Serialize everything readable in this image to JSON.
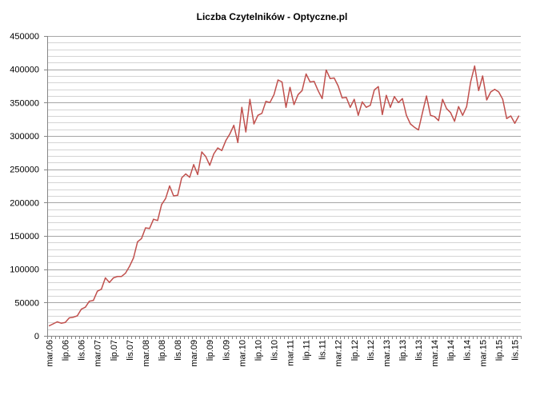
{
  "chart_data": {
    "type": "line",
    "title": "Liczba Czytelników - Optyczne.pl",
    "xlabel": "",
    "ylabel": "",
    "ylim": [
      0,
      450000
    ],
    "y_ticks": [
      "0",
      "50000",
      "100000",
      "150000",
      "200000",
      "250000",
      "300000",
      "350000",
      "400000",
      "450000"
    ],
    "x_tick_labels": [
      "mar.06",
      "lip.06",
      "lis.06",
      "mar.07",
      "lip.07",
      "lis.07",
      "mar.08",
      "lip.08",
      "lis.08",
      "mar.09",
      "lip.09",
      "lis.09",
      "mar.10",
      "lip.10",
      "lis.10",
      "mar.11",
      "lip.11",
      "lis.11",
      "mar.12",
      "lip.12",
      "lis.12",
      "mar.13",
      "lip.13",
      "lis.13",
      "mar.14",
      "lip.14",
      "lis.14",
      "mar.15",
      "lip.15",
      "lis.15"
    ],
    "grid": true,
    "legend": "none",
    "colors": {
      "line": "#c0504d",
      "grid": "#a6a6a6",
      "axis": "#868686"
    },
    "series": [
      {
        "values": [
          15000,
          18000,
          21000,
          19000,
          20000,
          27000,
          28000,
          30000,
          40000,
          43000,
          52000,
          53000,
          67000,
          70000,
          87000,
          80000,
          87000,
          89000,
          89000,
          94000,
          104000,
          117000,
          141000,
          146000,
          162000,
          161000,
          175000,
          173000,
          197000,
          206000,
          225000,
          210000,
          211000,
          237000,
          243000,
          238000,
          257000,
          242000,
          276000,
          269000,
          256000,
          273000,
          282000,
          278000,
          293000,
          303000,
          316000,
          290000,
          343000,
          306000,
          355000,
          318000,
          331000,
          334000,
          352000,
          350000,
          362000,
          384000,
          381000,
          343000,
          373000,
          347000,
          362000,
          368000,
          393000,
          381000,
          382000,
          368000,
          356000,
          399000,
          386000,
          387000,
          375000,
          357000,
          358000,
          343000,
          355000,
          331000,
          351000,
          343000,
          346000,
          369000,
          374000,
          332000,
          361000,
          343000,
          359000,
          350000,
          356000,
          331000,
          318000,
          313000,
          309000,
          335000,
          360000,
          331000,
          329000,
          323000,
          355000,
          341000,
          335000,
          322000,
          344000,
          331000,
          344000,
          381000,
          405000,
          368000,
          390000,
          354000,
          366000,
          370000,
          366000,
          355000,
          326000,
          330000,
          319000,
          330000
        ]
      }
    ]
  }
}
